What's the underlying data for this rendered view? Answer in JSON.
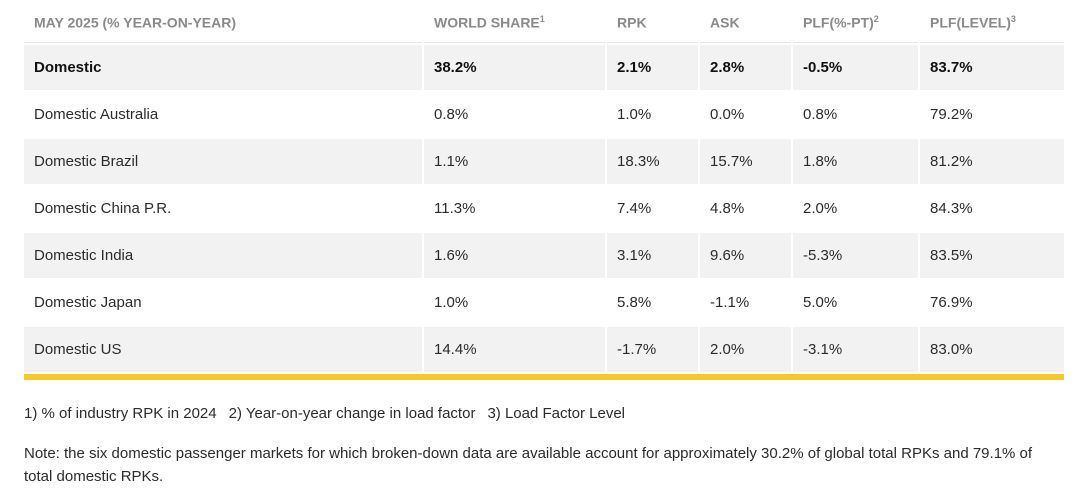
{
  "table": {
    "headers": [
      {
        "label": "MAY 2025 (% YEAR-ON-YEAR)",
        "sup": ""
      },
      {
        "label": "WORLD SHARE",
        "sup": "1"
      },
      {
        "label": "RPK",
        "sup": ""
      },
      {
        "label": "ASK",
        "sup": ""
      },
      {
        "label": "PLF(%-PT)",
        "sup": "2"
      },
      {
        "label": "PLF(LEVEL)",
        "sup": "3"
      }
    ],
    "rows": [
      [
        "Domestic",
        "38.2%",
        "2.1%",
        "2.8%",
        "-0.5%",
        "83.7%"
      ],
      [
        "Domestic Australia",
        "0.8%",
        "1.0%",
        "0.0%",
        "0.8%",
        "79.2%"
      ],
      [
        "Domestic Brazil",
        "1.1%",
        "18.3%",
        "15.7%",
        "1.8%",
        "81.2%"
      ],
      [
        "Domestic China P.R.",
        "11.3%",
        "7.4%",
        "4.8%",
        "2.0%",
        "84.3%"
      ],
      [
        "Domestic India",
        "1.6%",
        "3.1%",
        "9.6%",
        "-5.3%",
        "83.5%"
      ],
      [
        "Domestic Japan",
        "1.0%",
        "5.8%",
        "-1.1%",
        "5.0%",
        "76.9%"
      ],
      [
        "Domestic US",
        "14.4%",
        "-1.7%",
        "2.0%",
        "-3.1%",
        "83.0%"
      ]
    ]
  },
  "footnotes": [
    "1) % of industry RPK in 2024",
    "2) Year-on-year change in load factor",
    "3) Load Factor Level"
  ],
  "note": "Note: the six domestic passenger markets for which broken-down data are available account for approximately 30.2% of global total RPKs and 79.1% of total domestic RPKs.",
  "colors": {
    "accent_bar": "#f5c92a",
    "header_text": "#8a8a8a",
    "stripe": "#f2f2f2"
  }
}
